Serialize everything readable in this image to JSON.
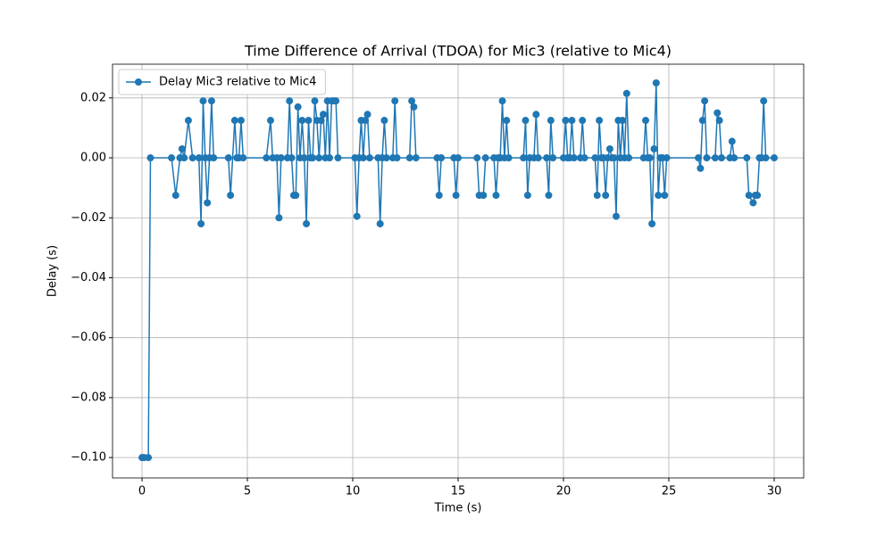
{
  "chart_data": {
    "type": "line",
    "title": "Time Difference of Arrival (TDOA) for Mic3 (relative to Mic4)",
    "x_label": "Time (s)",
    "y_label": "Delay (s)",
    "x": [
      0,
      0.1,
      0.3,
      0.4,
      1.4,
      1.6,
      1.8,
      1.9,
      2.0,
      2.2,
      2.4,
      2.7,
      2.8,
      2.9,
      3.0,
      3.1,
      3.2,
      3.3,
      3.4,
      4.1,
      4.2,
      4.4,
      4.5,
      4.6,
      4.7,
      4.8,
      5.9,
      6.1,
      6.2,
      6.4,
      6.5,
      6.6,
      6.9,
      7.0,
      7.1,
      7.2,
      7.3,
      7.4,
      7.5,
      7.6,
      7.7,
      7.8,
      7.9,
      8.0,
      8.1,
      8.2,
      8.3,
      8.4,
      8.5,
      8.6,
      8.7,
      8.8,
      8.9,
      9.0,
      9.1,
      9.2,
      9.3,
      10.1,
      10.2,
      10.3,
      10.4,
      10.5,
      10.6,
      10.7,
      10.8,
      11.2,
      11.3,
      11.4,
      11.5,
      11.6,
      11.9,
      12.0,
      12.1,
      12.7,
      12.8,
      12.9,
      13.0,
      14.0,
      14.1,
      14.2,
      14.8,
      14.9,
      15.0,
      15.9,
      16.0,
      16.2,
      16.3,
      16.7,
      16.8,
      16.9,
      17.0,
      17.1,
      17.2,
      17.3,
      17.4,
      18.1,
      18.2,
      18.3,
      18.4,
      18.6,
      18.7,
      18.8,
      19.2,
      19.3,
      19.4,
      19.5,
      20.0,
      20.1,
      20.2,
      20.3,
      20.4,
      20.5,
      20.8,
      20.9,
      21.0,
      21.5,
      21.6,
      21.7,
      21.8,
      21.9,
      22.0,
      22.1,
      22.2,
      22.3,
      22.4,
      22.5,
      22.6,
      22.7,
      22.8,
      22.9,
      23.0,
      23.1,
      23.8,
      23.9,
      24.0,
      24.1,
      24.2,
      24.3,
      24.4,
      24.5,
      24.6,
      24.7,
      24.8,
      24.9,
      26.4,
      26.5,
      26.6,
      26.7,
      26.8,
      27.2,
      27.3,
      27.4,
      27.5,
      27.9,
      28.0,
      28.1,
      28.7,
      28.8,
      29.0,
      29.1,
      29.2,
      29.3,
      29.4,
      29.5,
      29.6,
      30.0
    ],
    "series": [
      {
        "name": "Delay Mic3 relative to Mic4",
        "color": "#1f77b4",
        "values": [
          -0.1,
          -0.1,
          -0.1,
          0,
          0,
          -0.0125,
          0,
          0.003,
          0,
          0.0125,
          0,
          0,
          -0.022,
          0.019,
          0,
          -0.015,
          0,
          0.019,
          0,
          0,
          -0.0125,
          0.0125,
          0,
          0,
          0.0125,
          0,
          0,
          0.0125,
          0,
          0,
          -0.02,
          0,
          0,
          0.019,
          0,
          -0.0125,
          -0.0125,
          0.017,
          0,
          0.0125,
          0,
          -0.022,
          0.0125,
          0,
          0,
          0.019,
          0.0125,
          0,
          0.0125,
          0.0145,
          0,
          0.019,
          0,
          0.019,
          0.019,
          0.019,
          0,
          0,
          -0.0195,
          0,
          0.0125,
          0,
          0.0125,
          0.0145,
          0,
          0,
          -0.022,
          0,
          0.0125,
          0,
          0,
          0.019,
          0,
          0,
          0.019,
          0.017,
          0,
          0,
          -0.0125,
          0,
          0,
          -0.0125,
          0,
          0,
          -0.0125,
          -0.0125,
          0,
          0,
          -0.0125,
          0,
          0,
          0.019,
          0,
          0.0125,
          0,
          0,
          0.0125,
          -0.0125,
          0,
          0,
          0.0145,
          0,
          0,
          -0.0125,
          0.0125,
          0,
          0,
          0.0125,
          0,
          0,
          0.0125,
          0,
          0,
          0.0125,
          0,
          0,
          -0.0125,
          0.0125,
          0,
          0,
          -0.0125,
          0,
          0.003,
          0,
          0,
          -0.0195,
          0.0125,
          0,
          0.0125,
          0,
          0.0215,
          0,
          0,
          0.0125,
          0,
          0,
          -0.022,
          0.003,
          0.025,
          -0.0125,
          0,
          0,
          -0.0125,
          0,
          0,
          -0.0035,
          0.0125,
          0.019,
          0,
          0,
          0.015,
          0.0125,
          0,
          0,
          0.0055,
          0,
          0,
          -0.0125,
          -0.015,
          -0.0125,
          -0.0125,
          0,
          0,
          0.019,
          0,
          0
        ]
      }
    ],
    "xlim": [
      -1.4,
      31.4
    ],
    "ylim": [
      -0.1068,
      0.03125
    ],
    "xticks": [
      0,
      5,
      10,
      15,
      20,
      25,
      30
    ],
    "yticks": [
      {
        "value": -0.1,
        "label": "−0.10"
      },
      {
        "value": -0.08,
        "label": "−0.08"
      },
      {
        "value": -0.06,
        "label": "−0.06"
      },
      {
        "value": -0.04,
        "label": "−0.04"
      },
      {
        "value": -0.02,
        "label": "−0.02"
      },
      {
        "value": 0,
        "label": "0.00"
      },
      {
        "value": 0.02,
        "label": "0.02"
      }
    ],
    "grid": true,
    "legend": "upper-left"
  }
}
